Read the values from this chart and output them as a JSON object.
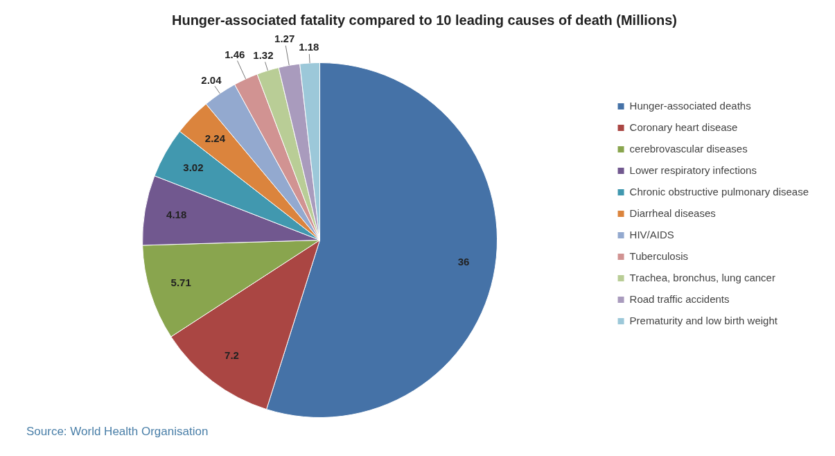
{
  "chart_data": {
    "type": "pie",
    "title": "Hunger-associated fatality compared to 10 leading causes of death (Millions)",
    "categories": [
      "Hunger-associated deaths",
      "Coronary heart disease",
      "cerebrovascular diseases",
      "Lower respiratory infections",
      "Chronic obstructive pulmonary disease",
      "Diarrheal diseases",
      "HIV/AIDS",
      "Tuberculosis",
      "Trachea, bronchus, lung cancer",
      "Road traffic accidents",
      "Prematurity and low birth weight"
    ],
    "values": [
      36,
      7.2,
      5.71,
      4.18,
      3.02,
      2.24,
      2.04,
      1.46,
      1.32,
      1.27,
      1.18
    ],
    "colors": [
      "#4572a7",
      "#aa4643",
      "#89a54e",
      "#71588f",
      "#4198af",
      "#db843d",
      "#93a9cf",
      "#d19392",
      "#b9cd96",
      "#a99bbd",
      "#9cc8d9"
    ],
    "data_labels": true,
    "legend": "right",
    "annotations": [
      "Source: World Health Organisation"
    ]
  }
}
